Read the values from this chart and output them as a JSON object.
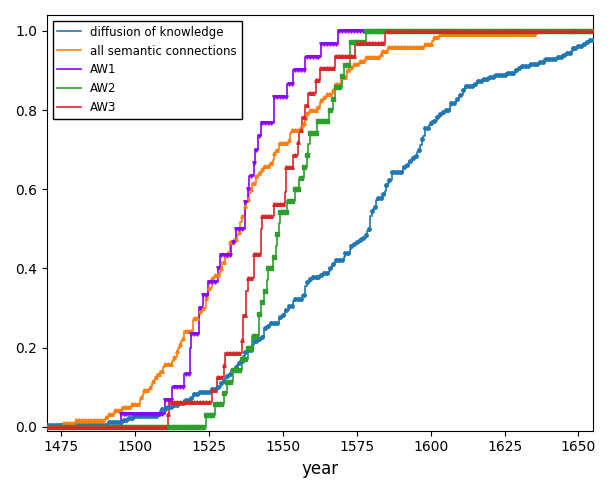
{
  "series": [
    {
      "key": "diffusion_of_knowledge",
      "label": "diffusion of knowledge",
      "color": "#1f77b4",
      "marker": "o",
      "markersize": 2.5,
      "linewidth": 1.2,
      "n_points": 180,
      "mean": 1572,
      "std": 38,
      "seed": 101
    },
    {
      "key": "all_semantic",
      "label": "all semantic connections",
      "color": "#ff7f0e",
      "marker": "^",
      "markersize": 2.5,
      "linewidth": 1.2,
      "n_points": 120,
      "mean": 1540,
      "std": 28,
      "seed": 202
    },
    {
      "key": "AW1",
      "label": "AW1",
      "color": "#8B00FF",
      "marker": "v",
      "markersize": 2.5,
      "linewidth": 1.2,
      "n_points": 30,
      "mean": 1536,
      "std": 16,
      "seed": 303
    },
    {
      "key": "AW2",
      "label": "AW2",
      "color": "#2ca02c",
      "marker": "s",
      "markersize": 2.5,
      "linewidth": 1.2,
      "n_points": 35,
      "mean": 1548,
      "std": 18,
      "seed": 404
    },
    {
      "key": "AW3",
      "label": "AW3",
      "color": "#d62728",
      "marker": "^",
      "markersize": 2.5,
      "linewidth": 1.2,
      "n_points": 32,
      "mean": 1548,
      "std": 18,
      "seed": 505
    }
  ],
  "xlabel": "year",
  "xlim": [
    1470,
    1655
  ],
  "ylim": [
    -0.01,
    1.04
  ],
  "xticks": [
    1475,
    1500,
    1525,
    1550,
    1575,
    1600,
    1625,
    1650
  ],
  "yticks": [
    0.0,
    0.2,
    0.4,
    0.6,
    0.8,
    1.0
  ],
  "legend_loc": "upper left",
  "legend_fontsize": 8.5,
  "figsize": [
    6.13,
    4.93
  ],
  "dpi": 100
}
